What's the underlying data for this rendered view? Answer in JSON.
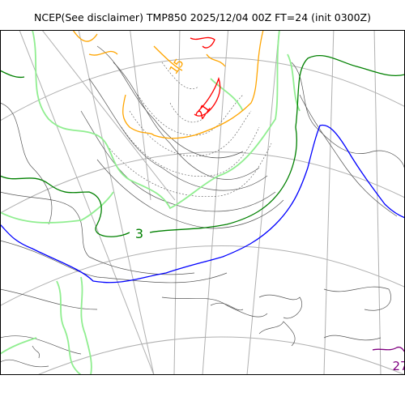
{
  "title": "NCEP(See disclaimer) TMP850 2025/12/04 00Z FT=24 (init 0300Z)",
  "contour_labels": {
    "green_3": "3",
    "orange_15": "15",
    "red_21": "21",
    "purple_27": "27"
  },
  "colors": {
    "grid": "#b0b0b0",
    "coast": "#000000",
    "thin_isotherm": "#555555",
    "light_green": "#90ee90",
    "dark_green": "#008000",
    "blue": "#0000ff",
    "orange": "#ffa500",
    "red": "#ff0000",
    "purple": "#800080"
  }
}
